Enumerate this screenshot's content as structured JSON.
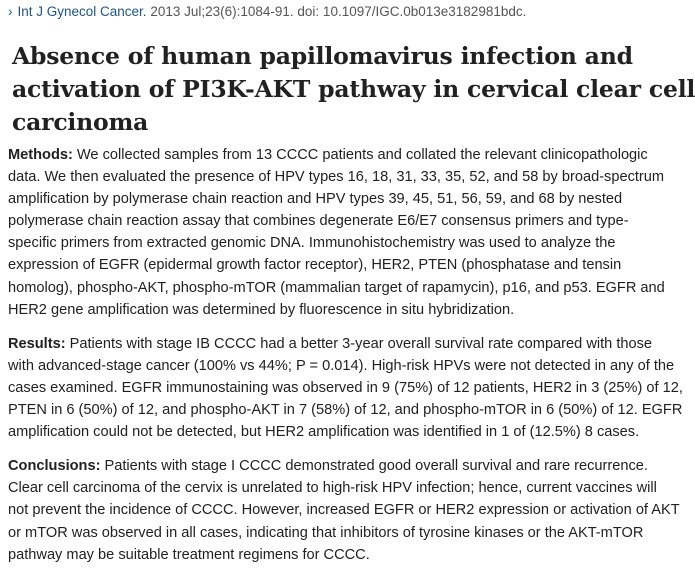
{
  "citation": {
    "journal": "Int J Gynecol Cancer.",
    "details": " 2013 Jul;23(6):1084-91. doi: 10.1097/IGC.0b013e3182981bdc."
  },
  "title_lines": [
    "Absence of human papillomavirus infection and",
    "activation of PI3K-AKT pathway in cervical clear cell",
    "carcinoma"
  ],
  "abstract": [
    {
      "label": "Methods:",
      "lines": [
        " We collected samples from 13 CCCC patients and collated the relevant clinicopathologic",
        "data. We then evaluated the presence of HPV types 16, 18, 31, 33, 35, 52, and 58 by broad-spectrum",
        "amplification by polymerase chain reaction and HPV types 39, 45, 51, 56, 59, and 68 by nested",
        "polymerase chain reaction assay that combines degenerate E6/E7 consensus primers and type-",
        "specific primers from extracted genomic DNA. Immunohistochemistry was used to analyze the",
        "expression of EGFR (epidermal growth factor receptor), HER2, PTEN (phosphatase and tensin",
        "homolog), phospho-AKT, phospho-mTOR (mammalian target of rapamycin), p16, and p53. EGFR and",
        "HER2 gene amplification was determined by fluorescence in situ hybridization."
      ]
    },
    {
      "label": "Results:",
      "lines": [
        " Patients with stage IB CCCC had a better 3-year overall survival rate compared with those",
        "with advanced-stage cancer (100% vs 44%; P = 0.014). High-risk HPVs were not detected in any of the",
        "cases examined. EGFR immunostaining was observed in 9 (75%) of 12 patients, HER2 in 3 (25%) of 12,",
        "PTEN in 6 (50%) of 12, and phospho-AKT in 7 (58%) of 12, and phospho-mTOR in 6 (50%) of 12. EGFR",
        "amplification could not be detected, but HER2 amplification was identified in 1 of (12.5%) 8 cases."
      ]
    },
    {
      "label": "Conclusions:",
      "lines": [
        " Patients with stage I CCCC demonstrated good overall survival and rare recurrence.",
        "Clear cell carcinoma of the cervix is unrelated to high-risk HPV infection; hence, current vaccines will",
        "not prevent the incidence of CCCC. However, increased EGFR or HER2 expression or activation of AKT",
        "or mTOR was observed in all cases, indicating that inhibitors of tyrosine kinases or the AKT-mTOR",
        "pathway may be suitable treatment regimens for CCCC."
      ]
    }
  ]
}
